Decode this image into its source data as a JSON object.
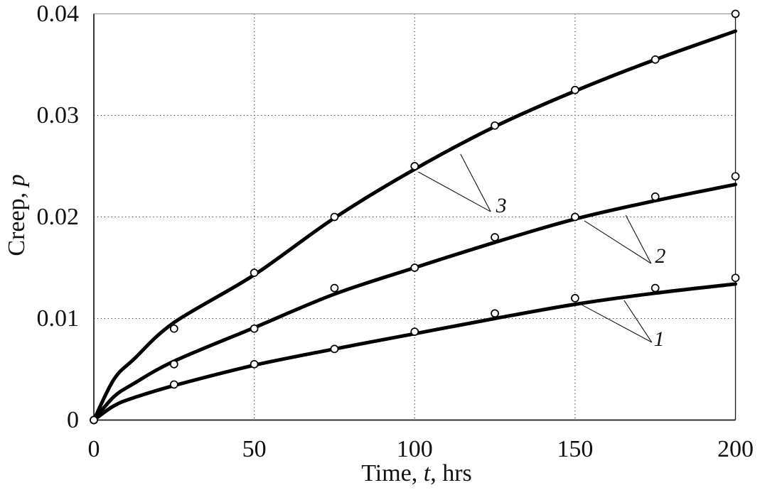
{
  "chart_data": {
    "type": "line",
    "title": "",
    "xlabel": "Time, t, hrs",
    "ylabel": "Creep, p",
    "xlabel_parts": {
      "prefix": "Time, ",
      "symbol": "t",
      "suffix": ", hrs"
    },
    "ylabel_parts": {
      "prefix": "Creep, ",
      "symbol": "p"
    },
    "xlim": [
      0,
      200
    ],
    "ylim": [
      0,
      0.04
    ],
    "x_ticks": [
      0,
      50,
      100,
      150,
      200
    ],
    "x_tick_labels": [
      "0",
      "50",
      "100",
      "150",
      "200"
    ],
    "y_ticks": [
      0,
      0.01,
      0.02,
      0.03,
      0.04
    ],
    "y_tick_labels": [
      "0",
      "0.01",
      "0.02",
      "0.03",
      "0.04"
    ],
    "grid": "dotted",
    "legend_position": "none",
    "marker": "open-circle",
    "curve_color": "#000000",
    "grid_color": "#3a3a3a",
    "frame_color": "#1a1a1a",
    "x_points": [
      0,
      25,
      50,
      75,
      100,
      125,
      150,
      175,
      200
    ],
    "series": [
      {
        "name": "1",
        "points": [
          0,
          0.0035,
          0.0055,
          0.007,
          0.0087,
          0.0105,
          0.012,
          0.013,
          0.014
        ],
        "fit_t": [
          0,
          6.25,
          12.5,
          25,
          50,
          75,
          100,
          125,
          150,
          175,
          200
        ],
        "fit_p": [
          0,
          0.0014,
          0.0022,
          0.0034,
          0.0054,
          0.007,
          0.0085,
          0.01,
          0.0114,
          0.0125,
          0.0134
        ]
      },
      {
        "name": "2",
        "points": [
          0,
          0.0055,
          0.009,
          0.013,
          0.015,
          0.018,
          0.02,
          0.022,
          0.024
        ],
        "fit_t": [
          0,
          6.25,
          12.5,
          25,
          50,
          75,
          100,
          125,
          150,
          175,
          200
        ],
        "fit_p": [
          0,
          0.0023,
          0.0036,
          0.0058,
          0.0091,
          0.0124,
          0.015,
          0.0175,
          0.0198,
          0.0216,
          0.0232
        ]
      },
      {
        "name": "3",
        "points": [
          0,
          0.009,
          0.0145,
          0.02,
          0.025,
          0.029,
          0.0325,
          0.0355,
          0.04
        ],
        "fit_t": [
          0,
          6.25,
          12.5,
          25,
          50,
          75,
          100,
          125,
          150,
          175,
          200
        ],
        "fit_p": [
          0,
          0.004,
          0.006,
          0.0096,
          0.0143,
          0.0199,
          0.0247,
          0.0289,
          0.0324,
          0.0355,
          0.0383
        ]
      }
    ],
    "annotations": [
      {
        "label": "1",
        "x": 176.2,
        "y": 0.00794,
        "apex": [
          173.9,
          0.00766
        ],
        "targets": [
          [
            165.3,
            0.01178
          ],
          [
            151.6,
            0.01143
          ]
        ]
      },
      {
        "label": "2",
        "x": 176.6,
        "y": 0.01612,
        "apex": [
          173.7,
          0.01542
        ],
        "targets": [
          [
            165.8,
            0.02017
          ],
          [
            152.9,
            0.01962
          ]
        ]
      },
      {
        "label": "3",
        "x": 127.0,
        "y": 0.02108,
        "apex": [
          123.7,
          0.02052
        ],
        "targets": [
          [
            114.3,
            0.02619
          ],
          [
            101.1,
            0.02444
          ]
        ]
      }
    ]
  }
}
